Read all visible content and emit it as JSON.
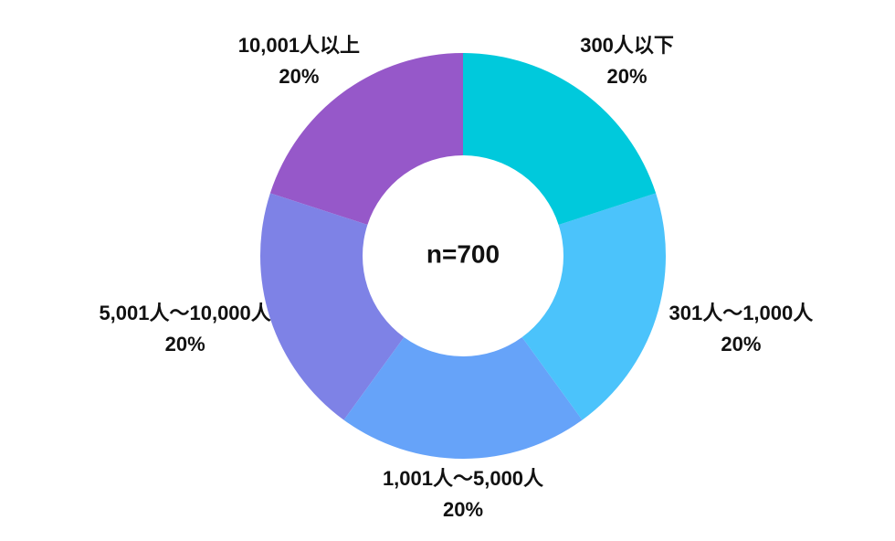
{
  "chart_data": {
    "type": "donut",
    "center_label": "n=700",
    "categories": [
      "300人以下",
      "301人～1,000人",
      "1,001人～5,000人",
      "5,001人～10,000人",
      "10,001人以上"
    ],
    "values": [
      20,
      20,
      20,
      20,
      20
    ],
    "value_labels": [
      "20%",
      "20%",
      "20%",
      "20%",
      "20%"
    ],
    "colors": [
      "#00c9dc",
      "#4bc3fb",
      "#66a3f9",
      "#7e82e6",
      "#9658c9"
    ]
  }
}
